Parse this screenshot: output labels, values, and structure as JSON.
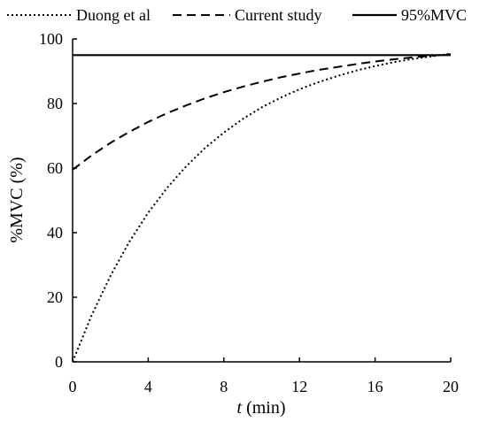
{
  "chart_data": {
    "type": "line",
    "xlabel_italic": "t",
    "xlabel_rest": " (min)",
    "ylabel": "%MVC (%)",
    "xlim": [
      0,
      20
    ],
    "ylim": [
      0,
      100
    ],
    "x_ticks": [
      0,
      4,
      8,
      12,
      16,
      20
    ],
    "y_ticks": [
      0,
      20,
      40,
      60,
      80,
      100
    ],
    "grid": false,
    "legend_position": "top",
    "series": [
      {
        "name": "Duong et al",
        "style": "dotted",
        "color": "#000000",
        "x": [
          0,
          1,
          2,
          3,
          4,
          5,
          6,
          7,
          8,
          9,
          10,
          11,
          12,
          13,
          14,
          15,
          16,
          17,
          18,
          19,
          20
        ],
        "y": [
          0,
          14.3,
          26.6,
          37.2,
          46.2,
          53.9,
          60.5,
          66.2,
          71.0,
          75.2,
          78.8,
          81.8,
          84.4,
          86.6,
          88.5,
          90.2,
          91.6,
          92.8,
          93.8,
          94.6,
          95.4
        ]
      },
      {
        "name": "Current study",
        "style": "dashed",
        "color": "#000000",
        "x": [
          0,
          1,
          2,
          3,
          4,
          5,
          6,
          7,
          8,
          9,
          10,
          11,
          12,
          13,
          14,
          15,
          16,
          17,
          18,
          19,
          20
        ],
        "y": [
          59.5,
          63.9,
          67.8,
          71.2,
          74.3,
          77.0,
          79.4,
          81.6,
          83.5,
          85.2,
          86.7,
          88.1,
          89.3,
          90.4,
          91.3,
          92.2,
          93.0,
          93.7,
          94.3,
          94.8,
          95.3
        ]
      },
      {
        "name": "95%MVC",
        "style": "solid",
        "color": "#000000",
        "x": [
          0,
          20
        ],
        "y": [
          95,
          95
        ]
      }
    ]
  }
}
